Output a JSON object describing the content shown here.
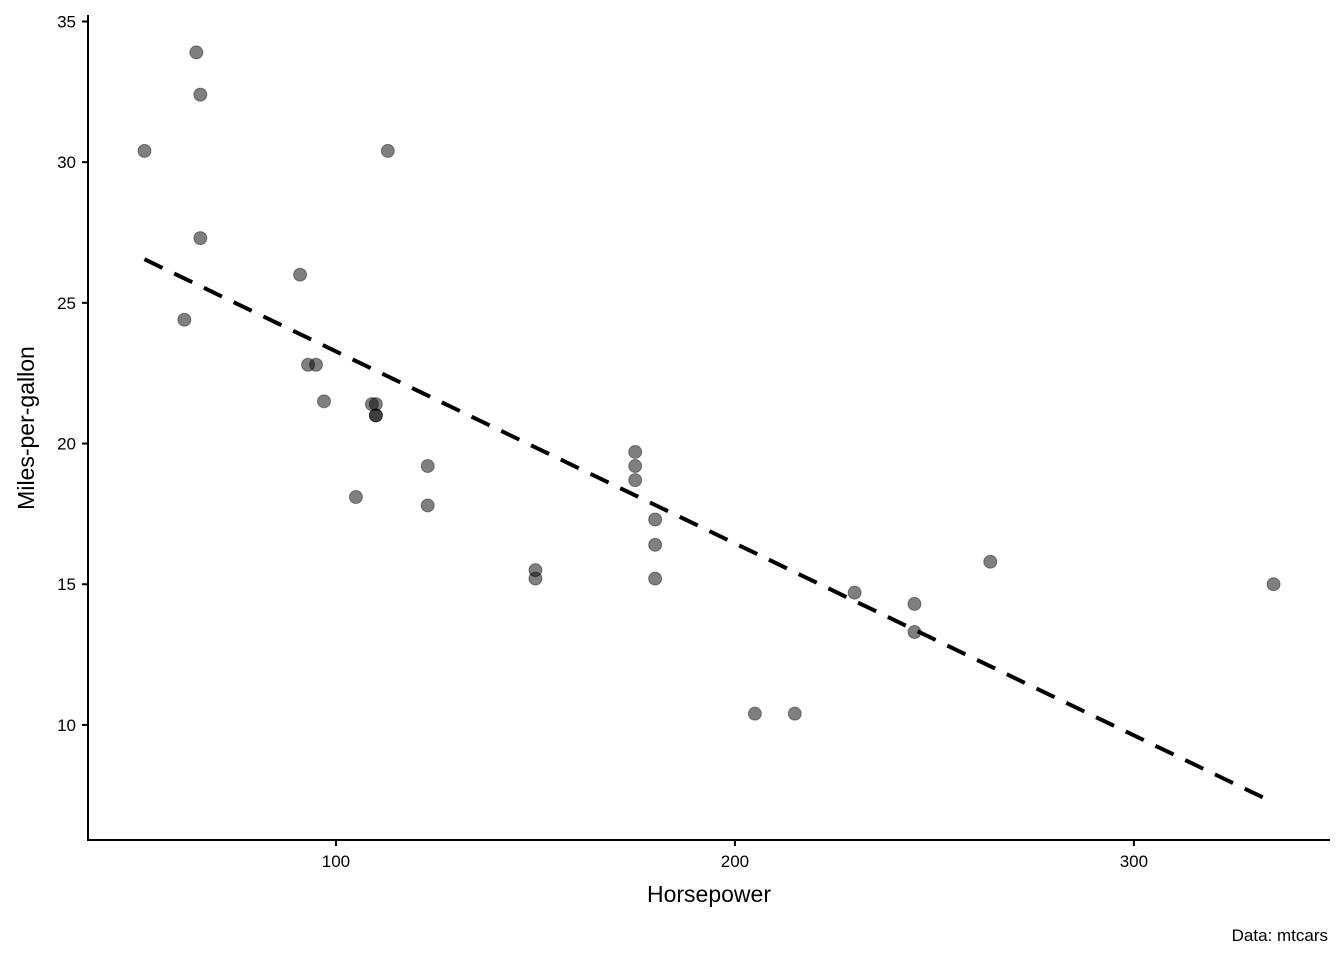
{
  "chart_data": {
    "type": "scatter",
    "xlabel": "Horsepower",
    "ylabel": "Miles-per-gallon",
    "caption": "Data: mtcars",
    "xlim": [
      37.85,
      349.15
    ],
    "ylim": [
      5.91,
      35.23
    ],
    "xticks": [
      100,
      200,
      300
    ],
    "yticks": [
      10,
      15,
      20,
      25,
      30,
      35
    ],
    "grid": false,
    "point_color": "#000000",
    "point_alpha": 0.5,
    "points": [
      [
        110,
        21
      ],
      [
        110,
        21
      ],
      [
        93,
        22.8
      ],
      [
        110,
        21.4
      ],
      [
        175,
        18.7
      ],
      [
        105,
        18.1
      ],
      [
        245,
        14.3
      ],
      [
        62,
        24.4
      ],
      [
        95,
        22.8
      ],
      [
        123,
        19.2
      ],
      [
        123,
        17.8
      ],
      [
        180,
        16.4
      ],
      [
        180,
        17.3
      ],
      [
        180,
        15.2
      ],
      [
        205,
        10.4
      ],
      [
        215,
        10.4
      ],
      [
        230,
        14.7
      ],
      [
        66,
        32.4
      ],
      [
        52,
        30.4
      ],
      [
        65,
        33.9
      ],
      [
        97,
        21.5
      ],
      [
        150,
        15.5
      ],
      [
        150,
        15.2
      ],
      [
        245,
        13.3
      ],
      [
        175,
        19.2
      ],
      [
        66,
        27.3
      ],
      [
        91,
        26
      ],
      [
        113,
        30.4
      ],
      [
        264,
        15.8
      ],
      [
        175,
        19.7
      ],
      [
        335,
        15
      ],
      [
        109,
        21.4
      ]
    ],
    "trend_line": {
      "type": "linear",
      "style": "dashed",
      "color": "#000000",
      "x": [
        52,
        335
      ],
      "y": [
        26.55,
        7.24
      ]
    }
  }
}
